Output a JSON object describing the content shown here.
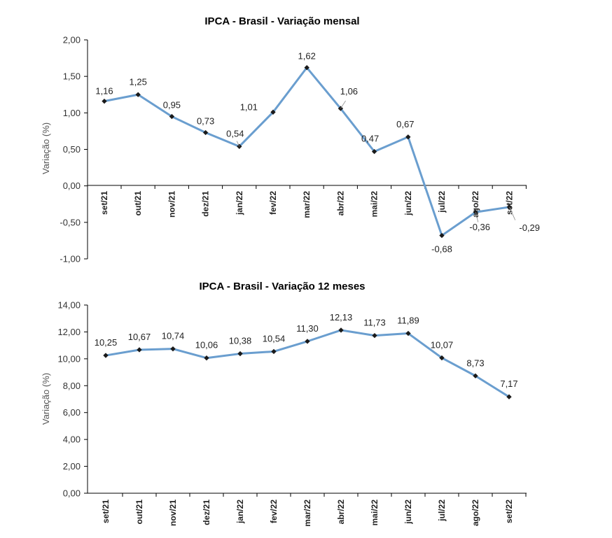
{
  "chart_data": [
    {
      "type": "line",
      "title": "IPCA - Brasil - Variação mensal",
      "xlabel": "",
      "ylabel": "Variação (%)",
      "categories": [
        "set/21",
        "out/21",
        "nov/21",
        "dez/21",
        "jan/22",
        "fev/22",
        "mar/22",
        "abr/22",
        "mai/22",
        "jun/22",
        "jul/22",
        "ago/22",
        "set/22"
      ],
      "values": [
        1.16,
        1.25,
        0.95,
        0.73,
        0.54,
        1.01,
        1.62,
        1.06,
        0.47,
        0.67,
        -0.68,
        -0.36,
        -0.29
      ],
      "value_labels": [
        "1,16",
        "1,25",
        "0,95",
        "0,73",
        "0,54",
        "1,01",
        "1,62",
        "1,06",
        "0,47",
        "0,67",
        "-0,68",
        "-0,36",
        "-0,29"
      ],
      "ylim": [
        -1.0,
        2.0
      ],
      "yticks": [
        2.0,
        1.5,
        1.0,
        0.5,
        0.0,
        -0.5,
        -1.0
      ],
      "ytick_labels": [
        "2,00",
        "1,50",
        "1,00",
        "0,50",
        "0,00",
        "-0,50",
        "-1,00"
      ],
      "grid": false,
      "legend": "none",
      "color": "#6a9ecf"
    },
    {
      "type": "line",
      "title": "IPCA - Brasil - Variação 12 meses",
      "xlabel": "",
      "ylabel": "Variação (%)",
      "categories": [
        "set/21",
        "out/21",
        "nov/21",
        "dez/21",
        "jan/22",
        "fev/22",
        "mar/22",
        "abr/22",
        "mai/22",
        "jun/22",
        "jul/22",
        "ago/22",
        "set/22"
      ],
      "values": [
        10.25,
        10.67,
        10.74,
        10.06,
        10.38,
        10.54,
        11.3,
        12.13,
        11.73,
        11.89,
        10.07,
        8.73,
        7.17
      ],
      "value_labels": [
        "10,25",
        "10,67",
        "10,74",
        "10,06",
        "10,38",
        "10,54",
        "11,30",
        "12,13",
        "11,73",
        "11,89",
        "10,07",
        "8,73",
        "7,17"
      ],
      "ylim": [
        0.0,
        14.0
      ],
      "yticks": [
        14.0,
        12.0,
        10.0,
        8.0,
        6.0,
        4.0,
        2.0,
        0.0
      ],
      "ytick_labels": [
        "14,00",
        "12,00",
        "10,00",
        "8,00",
        "6,00",
        "4,00",
        "2,00",
        "0,00"
      ],
      "grid": false,
      "legend": "none",
      "color": "#6a9ecf"
    }
  ]
}
